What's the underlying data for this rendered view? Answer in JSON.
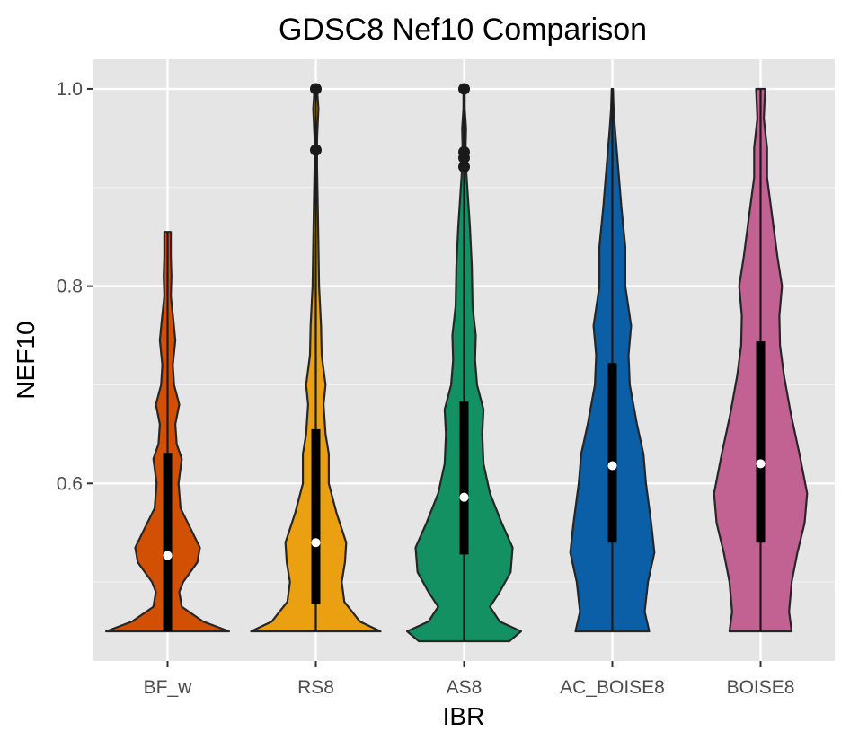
{
  "chart_data": {
    "type": "violin",
    "title": "GDSC8 Nef10 Comparison",
    "xlabel": "IBR",
    "ylabel": "NEF10",
    "categories": [
      "BF_w",
      "RS8",
      "AS8",
      "AC_BOISE8",
      "BOISE8"
    ],
    "ylim": [
      0.42,
      1.03
    ],
    "yticks": [
      0.6,
      0.8,
      1.0
    ],
    "ytick_labels": [
      "0.6",
      "0.8",
      "1.0"
    ],
    "grid": true,
    "legend": "none",
    "colors": [
      "#d15003",
      "#eaa011",
      "#139163",
      "#0a5fa6",
      "#c16293"
    ],
    "series": [
      {
        "category": "BF_w",
        "min": 0.45,
        "max": 0.855,
        "q1": 0.45,
        "median": 0.527,
        "q3": 0.631,
        "outliers": [],
        "density": [
          [
            0.45,
            0.95
          ],
          [
            0.46,
            0.55
          ],
          [
            0.475,
            0.22
          ],
          [
            0.49,
            0.18
          ],
          [
            0.5,
            0.24
          ],
          [
            0.52,
            0.46
          ],
          [
            0.535,
            0.5
          ],
          [
            0.555,
            0.35
          ],
          [
            0.575,
            0.2
          ],
          [
            0.6,
            0.17
          ],
          [
            0.625,
            0.22
          ],
          [
            0.64,
            0.14
          ],
          [
            0.66,
            0.12
          ],
          [
            0.68,
            0.18
          ],
          [
            0.7,
            0.1
          ],
          [
            0.72,
            0.08
          ],
          [
            0.745,
            0.12
          ],
          [
            0.765,
            0.09
          ],
          [
            0.79,
            0.05
          ],
          [
            0.81,
            0.06
          ],
          [
            0.83,
            0.05
          ],
          [
            0.845,
            0.05
          ],
          [
            0.855,
            0.05
          ]
        ]
      },
      {
        "category": "RS8",
        "min": 0.45,
        "max": 1.0,
        "q1": 0.478,
        "median": 0.54,
        "q3": 0.655,
        "outliers": [
          0.938,
          1.0
        ],
        "density": [
          [
            0.45,
            1.0
          ],
          [
            0.46,
            0.68
          ],
          [
            0.48,
            0.44
          ],
          [
            0.5,
            0.4
          ],
          [
            0.52,
            0.45
          ],
          [
            0.54,
            0.47
          ],
          [
            0.57,
            0.32
          ],
          [
            0.6,
            0.2
          ],
          [
            0.63,
            0.2
          ],
          [
            0.65,
            0.15
          ],
          [
            0.68,
            0.12
          ],
          [
            0.7,
            0.15
          ],
          [
            0.73,
            0.09
          ],
          [
            0.76,
            0.08
          ],
          [
            0.8,
            0.05
          ],
          [
            0.84,
            0.04
          ],
          [
            0.88,
            0.03
          ],
          [
            0.92,
            0.02
          ],
          [
            0.95,
            0.02
          ],
          [
            0.98,
            0.04
          ],
          [
            1.0,
            0.02
          ]
        ]
      },
      {
        "category": "AS8",
        "min": 0.44,
        "max": 1.0,
        "q1": 0.528,
        "median": 0.586,
        "q3": 0.683,
        "outliers": [
          0.921,
          0.93,
          0.936,
          1.0
        ],
        "density": [
          [
            0.44,
            0.7
          ],
          [
            0.45,
            0.88
          ],
          [
            0.46,
            0.55
          ],
          [
            0.475,
            0.4
          ],
          [
            0.49,
            0.55
          ],
          [
            0.51,
            0.72
          ],
          [
            0.535,
            0.75
          ],
          [
            0.56,
            0.58
          ],
          [
            0.59,
            0.4
          ],
          [
            0.62,
            0.3
          ],
          [
            0.65,
            0.28
          ],
          [
            0.675,
            0.3
          ],
          [
            0.7,
            0.2
          ],
          [
            0.725,
            0.17
          ],
          [
            0.75,
            0.18
          ],
          [
            0.78,
            0.13
          ],
          [
            0.82,
            0.12
          ],
          [
            0.86,
            0.09
          ],
          [
            0.9,
            0.05
          ],
          [
            0.93,
            0.02
          ],
          [
            0.96,
            0.03
          ],
          [
            0.98,
            0.01
          ],
          [
            1.0,
            0.01
          ]
        ]
      },
      {
        "category": "AC_BOISE8",
        "min": 0.45,
        "max": 1.0,
        "q1": 0.54,
        "median": 0.618,
        "q3": 0.722,
        "outliers": [],
        "density": [
          [
            0.45,
            0.57
          ],
          [
            0.47,
            0.5
          ],
          [
            0.5,
            0.55
          ],
          [
            0.53,
            0.65
          ],
          [
            0.56,
            0.6
          ],
          [
            0.6,
            0.52
          ],
          [
            0.63,
            0.48
          ],
          [
            0.66,
            0.38
          ],
          [
            0.7,
            0.27
          ],
          [
            0.73,
            0.25
          ],
          [
            0.76,
            0.29
          ],
          [
            0.8,
            0.2
          ],
          [
            0.84,
            0.2
          ],
          [
            0.88,
            0.14
          ],
          [
            0.92,
            0.09
          ],
          [
            0.96,
            0.04
          ],
          [
            0.98,
            0.02
          ],
          [
            1.0,
            0.01
          ]
        ]
      },
      {
        "category": "BOISE8",
        "min": 0.45,
        "max": 1.0,
        "q1": 0.54,
        "median": 0.62,
        "q3": 0.744,
        "outliers": [],
        "density": [
          [
            0.45,
            0.48
          ],
          [
            0.47,
            0.44
          ],
          [
            0.5,
            0.48
          ],
          [
            0.53,
            0.57
          ],
          [
            0.56,
            0.68
          ],
          [
            0.59,
            0.72
          ],
          [
            0.63,
            0.6
          ],
          [
            0.67,
            0.47
          ],
          [
            0.71,
            0.36
          ],
          [
            0.74,
            0.3
          ],
          [
            0.77,
            0.29
          ],
          [
            0.8,
            0.33
          ],
          [
            0.83,
            0.26
          ],
          [
            0.87,
            0.18
          ],
          [
            0.91,
            0.1
          ],
          [
            0.94,
            0.1
          ],
          [
            0.97,
            0.05
          ],
          [
            1.0,
            0.07
          ]
        ]
      }
    ]
  }
}
